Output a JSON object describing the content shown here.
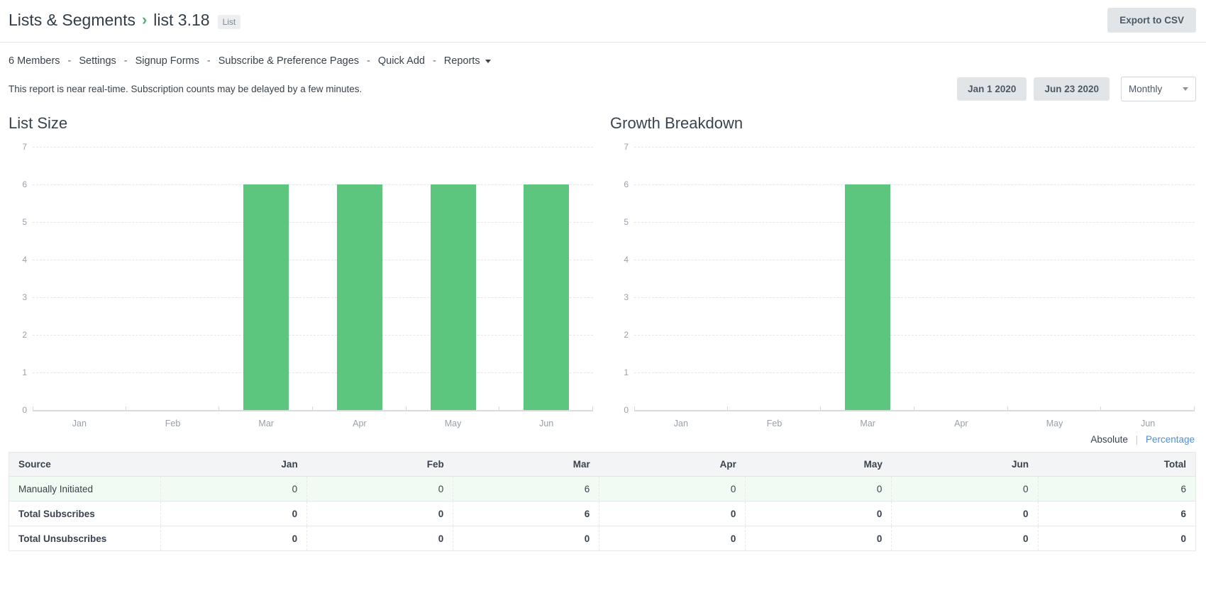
{
  "header": {
    "breadcrumb_root": "Lists & Segments",
    "breadcrumb_chevron": "›",
    "breadcrumb_current": "list 3.18",
    "badge": "List",
    "export_button": "Export to CSV"
  },
  "nav": {
    "items": [
      {
        "label": "6 Members",
        "caret": false
      },
      {
        "label": "Settings",
        "caret": false
      },
      {
        "label": "Signup Forms",
        "caret": false
      },
      {
        "label": "Subscribe & Preference Pages",
        "caret": false
      },
      {
        "label": "Quick Add",
        "caret": false
      },
      {
        "label": "Reports",
        "caret": true
      }
    ],
    "separator": "-"
  },
  "report_note": "This report is near real-time. Subscription counts may be delayed by a few minutes.",
  "controls": {
    "start_date": "Jan 1 2020",
    "end_date": "Jun 23 2020",
    "interval": "Monthly"
  },
  "view_toggle": {
    "absolute": "Absolute",
    "separator": "|",
    "percentage": "Percentage"
  },
  "chart_data": [
    {
      "type": "bar",
      "title": "List Size",
      "categories": [
        "Jan",
        "Feb",
        "Mar",
        "Apr",
        "May",
        "Jun"
      ],
      "values": [
        0,
        0,
        6,
        6,
        6,
        6
      ],
      "xlabel": "",
      "ylabel": "",
      "ylim": [
        0,
        7
      ],
      "yticks": [
        0,
        1,
        2,
        3,
        4,
        5,
        6,
        7
      ],
      "grid": "dashed horizontal",
      "legend": "none",
      "bar_color": "#5cc67e"
    },
    {
      "type": "bar",
      "title": "Growth Breakdown",
      "categories": [
        "Jan",
        "Feb",
        "Mar",
        "Apr",
        "May",
        "Jun"
      ],
      "values": [
        0,
        0,
        6,
        0,
        0,
        0
      ],
      "xlabel": "",
      "ylabel": "",
      "ylim": [
        0,
        7
      ],
      "yticks": [
        0,
        1,
        2,
        3,
        4,
        5,
        6,
        7
      ],
      "grid": "dashed horizontal",
      "legend": "none",
      "bar_color": "#5cc67e"
    }
  ],
  "table": {
    "columns": [
      "Source",
      "Jan",
      "Feb",
      "Mar",
      "Apr",
      "May",
      "Jun",
      "Total"
    ],
    "rows": [
      {
        "label": "Manually Initiated",
        "values": [
          0,
          0,
          6,
          0,
          0,
          0,
          6
        ],
        "bold": false,
        "row_style": "row-green",
        "highlight_value_index": 2
      },
      {
        "label": "Total Subscribes",
        "values": [
          0,
          0,
          6,
          0,
          0,
          0,
          6
        ],
        "bold": true,
        "row_style": "",
        "highlight_value_index": -1
      },
      {
        "label": "Total Unsubscribes",
        "values": [
          0,
          0,
          0,
          0,
          0,
          0,
          0
        ],
        "bold": true,
        "row_style": "",
        "highlight_value_index": -1
      }
    ]
  },
  "colors": {
    "bar_green": "#5cc67e",
    "row_green_bg": "#f1faf3",
    "cell_highlight_bg": "#d8efdd",
    "link_blue": "#4a90e2",
    "breadcrumb_chevron_green": "#51b173"
  }
}
